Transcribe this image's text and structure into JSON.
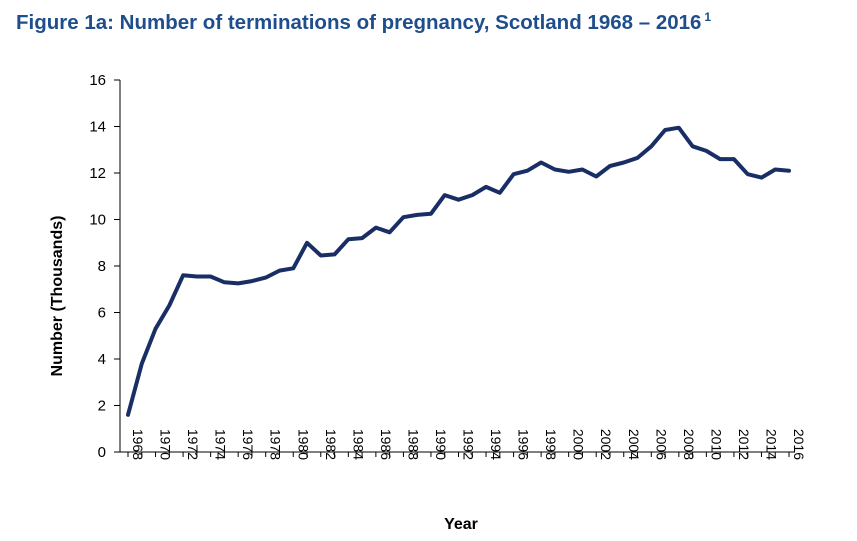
{
  "figure": {
    "title": "Figure 1a: Number of terminations of pregnancy, Scotland 1968 – 2016",
    "footnote_marker": "1"
  },
  "colors": {
    "title": "#1f4e8c",
    "line": "#1a2e66",
    "axis": "#000000"
  },
  "chart_data": {
    "type": "line",
    "title": "Figure 1a: Number of terminations of pregnancy, Scotland 1968 – 2016",
    "xlabel": "Year",
    "ylabel": "Number (Thousands)",
    "ylim": [
      0,
      16
    ],
    "xlim": [
      1968,
      2016
    ],
    "y_ticks": [
      0,
      2,
      4,
      6,
      8,
      10,
      12,
      14,
      16
    ],
    "x_ticks": [
      1968,
      1970,
      1972,
      1974,
      1976,
      1978,
      1980,
      1982,
      1984,
      1986,
      1988,
      1990,
      1992,
      1994,
      1996,
      1998,
      2000,
      2002,
      2004,
      2006,
      2008,
      2010,
      2012,
      2014,
      2016
    ],
    "grid": false,
    "legend": "none",
    "series": [
      {
        "x": [
          1968,
          1969,
          1970,
          1971,
          1972,
          1973,
          1974,
          1975,
          1976,
          1977,
          1978,
          1979,
          1980,
          1981,
          1982,
          1983,
          1984,
          1985,
          1986,
          1987,
          1988,
          1989,
          1990,
          1991,
          1992,
          1993,
          1994,
          1995,
          1996,
          1997,
          1998,
          1999,
          2000,
          2001,
          2002,
          2003,
          2004,
          2005,
          2006,
          2007,
          2008,
          2009,
          2010,
          2011,
          2012,
          2013,
          2014,
          2015,
          2016
        ],
        "values": [
          1.6,
          3.8,
          5.3,
          6.3,
          7.6,
          7.55,
          7.55,
          7.3,
          7.25,
          7.35,
          7.5,
          7.8,
          7.9,
          9.0,
          8.45,
          8.5,
          9.15,
          9.2,
          9.65,
          9.45,
          10.1,
          10.2,
          10.25,
          11.05,
          10.85,
          11.05,
          11.4,
          11.15,
          11.95,
          12.1,
          12.45,
          12.15,
          12.05,
          12.15,
          11.85,
          12.3,
          12.45,
          12.65,
          13.15,
          13.85,
          13.95,
          13.15,
          12.95,
          12.6,
          12.6,
          11.95,
          11.8,
          12.15,
          12.1
        ]
      }
    ]
  }
}
